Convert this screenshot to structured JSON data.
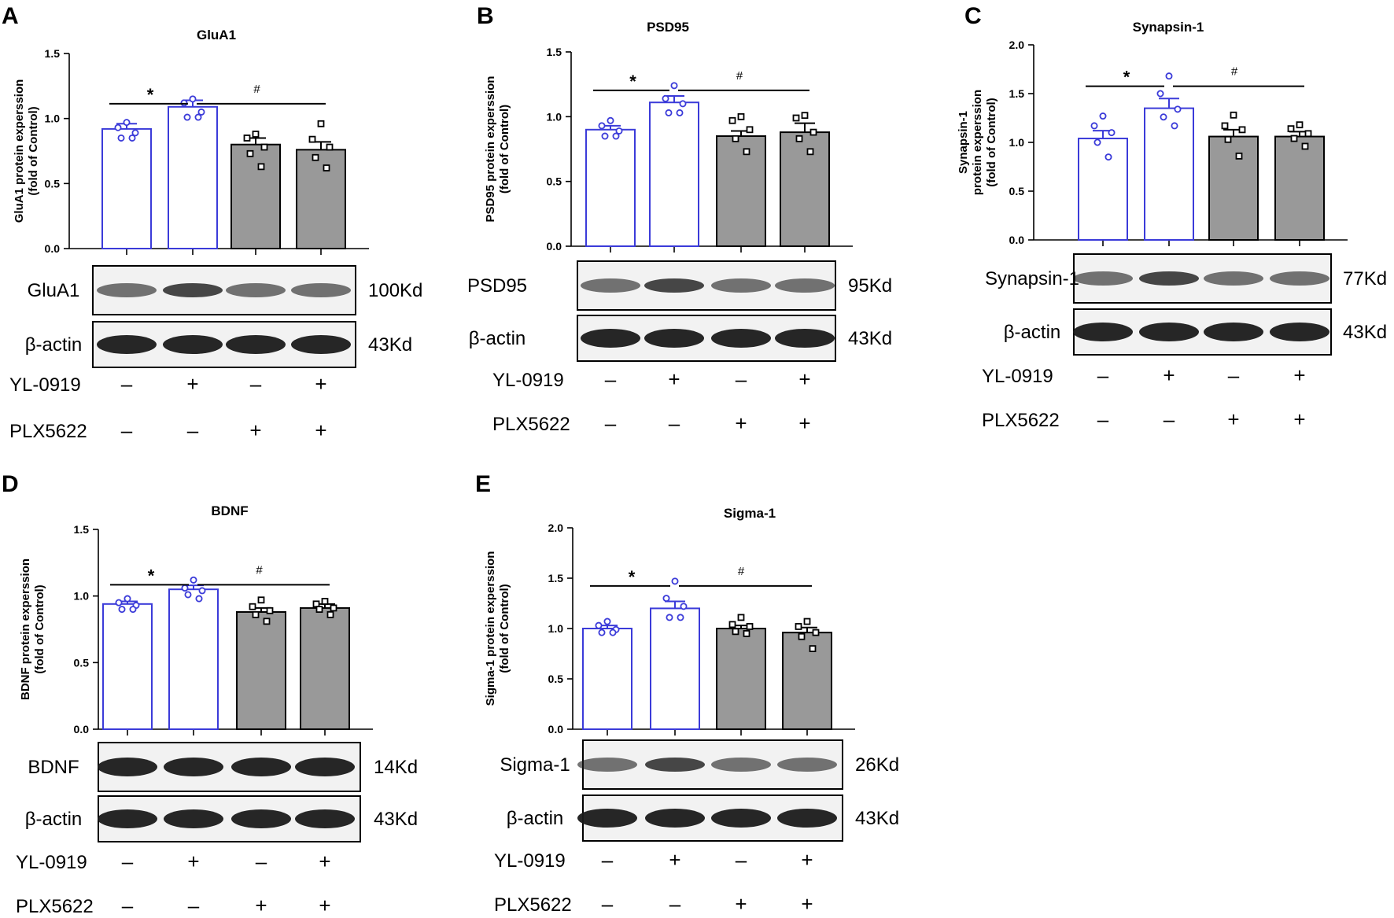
{
  "figure": {
    "conditions": [
      {
        "label": "YL-0919",
        "signs": [
          "–",
          "+",
          "–",
          "+"
        ]
      },
      {
        "label": "PLX5622",
        "signs": [
          "–",
          "–",
          "+",
          "+"
        ]
      }
    ],
    "colors": {
      "control_groups": "#3b3bd9",
      "plx_groups_fill": "#999999",
      "plx_groups_edge": "#000000",
      "axis": "#000000"
    },
    "significance": {
      "star": "*",
      "hash": "#"
    }
  },
  "chart_data": [
    {
      "panel": "A",
      "type": "bar",
      "title": "GluA1",
      "ylabel": "GluA1 protein experssion\n(fold of Control)",
      "ylim": [
        0,
        1.5
      ],
      "yticks": [
        "0.0",
        "0.5",
        "1.0",
        "1.5"
      ],
      "values": [
        0.92,
        1.09,
        0.8,
        0.76
      ],
      "errors": [
        0.04,
        0.05,
        0.05,
        0.06
      ],
      "points": [
        [
          0.97,
          0.93,
          0.89,
          0.85,
          0.85
        ],
        [
          1.15,
          1.12,
          1.05,
          1.01,
          1.01
        ],
        [
          0.88,
          0.85,
          0.78,
          0.73,
          0.63
        ],
        [
          0.96,
          0.84,
          0.78,
          0.7,
          0.62
        ]
      ],
      "blots": [
        {
          "label": "GluA1",
          "kd": "100Kd"
        },
        {
          "label": "β-actin",
          "kd": "43Kd"
        }
      ]
    },
    {
      "panel": "B",
      "type": "bar",
      "title": "PSD95",
      "ylabel": "PSD95 protein experssion\n(fold of Control)",
      "ylim": [
        0,
        1.5
      ],
      "yticks": [
        "0.0",
        "0.5",
        "1.0",
        "1.5"
      ],
      "values": [
        0.9,
        1.11,
        0.85,
        0.88
      ],
      "errors": [
        0.03,
        0.05,
        0.04,
        0.07
      ],
      "points": [
        [
          0.97,
          0.93,
          0.89,
          0.85,
          0.85
        ],
        [
          1.24,
          1.14,
          1.1,
          1.03,
          1.03
        ],
        [
          1.0,
          0.97,
          0.9,
          0.83,
          0.73
        ],
        [
          1.01,
          0.99,
          0.88,
          0.83,
          0.73
        ]
      ],
      "blots": [
        {
          "label": "PSD95",
          "kd": "95Kd"
        },
        {
          "label": "β-actin",
          "kd": "43Kd"
        }
      ]
    },
    {
      "panel": "C",
      "type": "bar",
      "title": "Synapsin-1",
      "ylabel": "Synapsin-1\nprotein experssion\n(fold of Control)",
      "ylim": [
        0,
        2.0
      ],
      "yticks": [
        "0.0",
        "0.5",
        "1.0",
        "1.5",
        "2.0"
      ],
      "values": [
        1.04,
        1.35,
        1.06,
        1.06
      ],
      "errors": [
        0.08,
        0.1,
        0.07,
        0.05
      ],
      "points": [
        [
          1.27,
          1.17,
          1.1,
          1.0,
          0.85
        ],
        [
          1.68,
          1.5,
          1.34,
          1.26,
          1.17
        ],
        [
          1.28,
          1.17,
          1.13,
          1.03,
          0.86
        ],
        [
          1.18,
          1.14,
          1.09,
          1.04,
          0.96
        ]
      ],
      "blots": [
        {
          "label": "Synapsin-1",
          "kd": "77Kd"
        },
        {
          "label": "β-actin",
          "kd": "43Kd"
        }
      ]
    },
    {
      "panel": "D",
      "type": "bar",
      "title": "BDNF",
      "ylabel": "BDNF protein experssion\n(fold of Control)",
      "ylim": [
        0,
        1.5
      ],
      "yticks": [
        "0.0",
        "0.5",
        "1.0",
        "1.5"
      ],
      "values": [
        0.94,
        1.05,
        0.88,
        0.91
      ],
      "errors": [
        0.02,
        0.03,
        0.03,
        0.03
      ],
      "points": [
        [
          0.98,
          0.95,
          0.93,
          0.9,
          0.9
        ],
        [
          1.12,
          1.06,
          1.04,
          1.01,
          0.98
        ],
        [
          0.97,
          0.92,
          0.89,
          0.86,
          0.81
        ],
        [
          0.96,
          0.94,
          0.91,
          0.9,
          0.86
        ]
      ],
      "blots": [
        {
          "label": "BDNF",
          "kd": "14Kd"
        },
        {
          "label": "β-actin",
          "kd": "43Kd"
        }
      ]
    },
    {
      "panel": "E",
      "type": "bar",
      "title": "Sigma-1",
      "ylabel": "Sigma-1 protein experssion\n(fold of Control)",
      "ylim": [
        0,
        2.0
      ],
      "yticks": [
        "0.0",
        "0.5",
        "1.0",
        "1.5",
        "2.0"
      ],
      "values": [
        1.0,
        1.2,
        1.0,
        0.96
      ],
      "errors": [
        0.03,
        0.07,
        0.03,
        0.05
      ],
      "points": [
        [
          1.07,
          1.03,
          0.99,
          0.96,
          0.96
        ],
        [
          1.47,
          1.3,
          1.22,
          1.11,
          1.11
        ],
        [
          1.11,
          1.04,
          1.02,
          0.97,
          0.95
        ],
        [
          1.07,
          1.02,
          0.96,
          0.92,
          0.8
        ]
      ],
      "blots": [
        {
          "label": "Sigma-1",
          "kd": "26Kd"
        },
        {
          "label": "β-actin",
          "kd": "43Kd"
        }
      ]
    }
  ]
}
